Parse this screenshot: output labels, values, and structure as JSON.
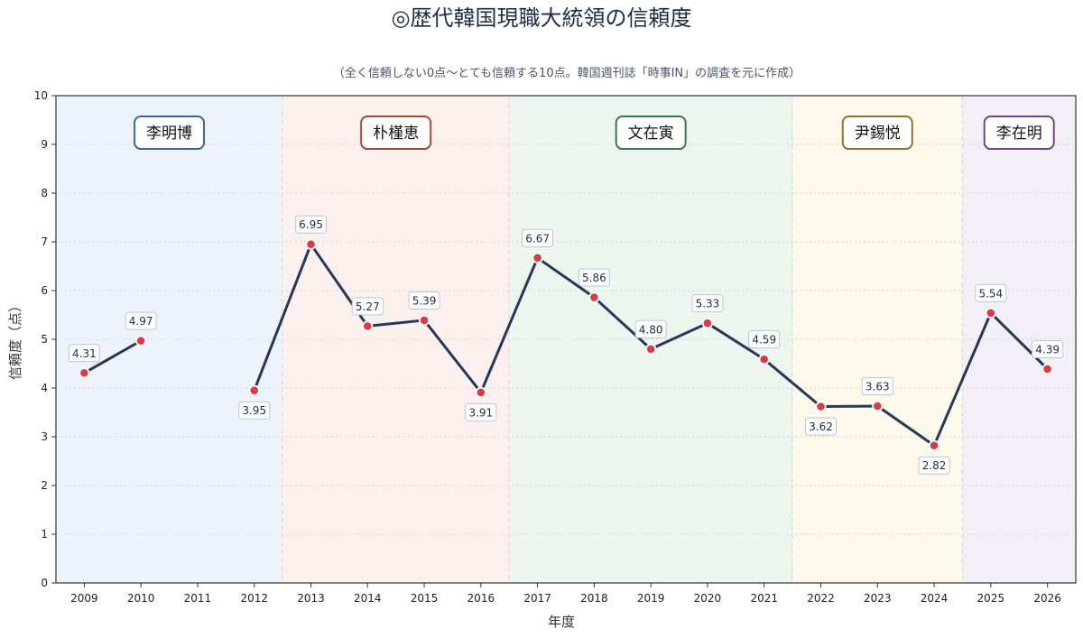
{
  "chart_data": {
    "type": "line",
    "title": "◎歴代韓国現職大統領の信頼度",
    "subtitle": "（全く信頼しない0点〜とても信頼する10点。韓国週刊誌「時事IN」の調査を元に作成）",
    "xlabel": "年度",
    "ylabel": "信頼度（点）",
    "ylim": [
      0,
      10
    ],
    "xlim": [
      2008.5,
      2026.5
    ],
    "x_ticks": [
      2009,
      2010,
      2011,
      2012,
      2013,
      2014,
      2015,
      2016,
      2017,
      2018,
      2019,
      2020,
      2021,
      2022,
      2023,
      2024,
      2025,
      2026
    ],
    "y_ticks": [
      0,
      1,
      2,
      3,
      4,
      5,
      6,
      7,
      8,
      9,
      10
    ],
    "grid": true,
    "line_color": "#253858",
    "marker_color": "#d63b47",
    "series": [
      {
        "points": [
          {
            "x": 2009,
            "y": 4.31,
            "label": "4.31",
            "pos": "above"
          },
          {
            "x": 2010,
            "y": 4.97,
            "label": "4.97",
            "pos": "above"
          },
          {
            "x": 2011,
            "y": null
          },
          {
            "x": 2012,
            "y": 3.95,
            "label": "3.95",
            "pos": "below"
          },
          {
            "x": 2013,
            "y": 6.95,
            "label": "6.95",
            "pos": "above"
          },
          {
            "x": 2014,
            "y": 5.27,
            "label": "5.27",
            "pos": "above"
          },
          {
            "x": 2015,
            "y": 5.39,
            "label": "5.39",
            "pos": "above"
          },
          {
            "x": 2016,
            "y": 3.91,
            "label": "3.91",
            "pos": "below"
          },
          {
            "x": 2017,
            "y": 6.67,
            "label": "6.67",
            "pos": "above"
          },
          {
            "x": 2018,
            "y": 5.86,
            "label": "5.86",
            "pos": "above"
          },
          {
            "x": 2019,
            "y": 4.8,
            "label": "4.80",
            "pos": "above"
          },
          {
            "x": 2020,
            "y": 5.33,
            "label": "5.33",
            "pos": "above"
          },
          {
            "x": 2021,
            "y": 4.59,
            "label": "4.59",
            "pos": "above"
          },
          {
            "x": 2022,
            "y": 3.62,
            "label": "3.62",
            "pos": "below"
          },
          {
            "x": 2023,
            "y": 3.63,
            "label": "3.63",
            "pos": "above"
          },
          {
            "x": 2024,
            "y": 2.82,
            "label": "2.82",
            "pos": "below"
          },
          {
            "x": 2025,
            "y": 5.54,
            "label": "5.54",
            "pos": "above"
          },
          {
            "x": 2026,
            "y": 4.39,
            "label": "4.39",
            "pos": "above"
          }
        ]
      }
    ],
    "eras": [
      {
        "name": "李明博",
        "start": 2008.5,
        "end": 2012.5,
        "fill": "#eef3fb",
        "border": "#3f6585"
      },
      {
        "name": "朴槿恵",
        "start": 2012.5,
        "end": 2016.5,
        "fill": "#fcf0ef",
        "border": "#a8443a"
      },
      {
        "name": "文在寅",
        "start": 2016.5,
        "end": 2021.5,
        "fill": "#edf5ef",
        "border": "#3e7550"
      },
      {
        "name": "尹錫悦",
        "start": 2021.5,
        "end": 2024.5,
        "fill": "#fcf8ea",
        "border": "#8d7530"
      },
      {
        "name": "李在明",
        "start": 2024.5,
        "end": 2026.5,
        "fill": "#f3eff7",
        "border": "#704680"
      }
    ]
  }
}
